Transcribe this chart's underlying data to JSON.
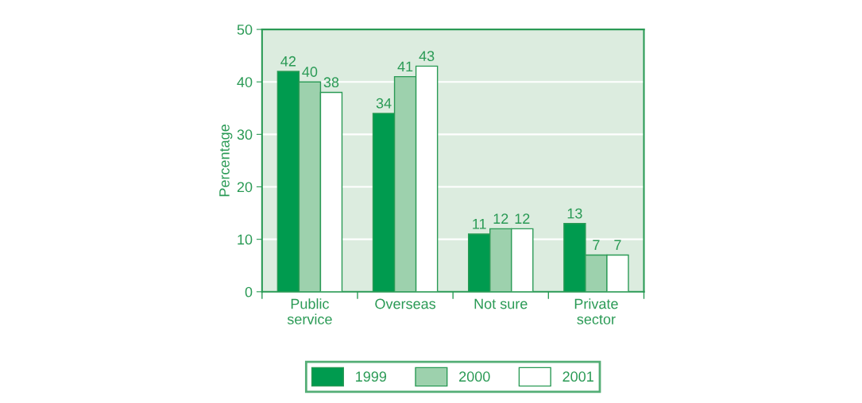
{
  "chart_data": {
    "type": "bar",
    "ylabel": "Percentage",
    "categories": [
      "Public\nservice",
      "Overseas",
      "Not sure",
      "Private\nsector"
    ],
    "series": [
      {
        "name": "1999",
        "color": "#009b4f",
        "values": [
          42,
          34,
          11,
          13
        ]
      },
      {
        "name": "2000",
        "color": "#9dd1ad",
        "values": [
          40,
          41,
          12,
          7
        ]
      },
      {
        "name": "2001",
        "color": "#ffffff",
        "values": [
          38,
          43,
          12,
          7
        ]
      }
    ],
    "ylim": [
      0,
      50
    ],
    "yticks": [
      0,
      10,
      20,
      30,
      40,
      50
    ],
    "grid": "y",
    "legend": "bottom",
    "data_labels": true
  }
}
